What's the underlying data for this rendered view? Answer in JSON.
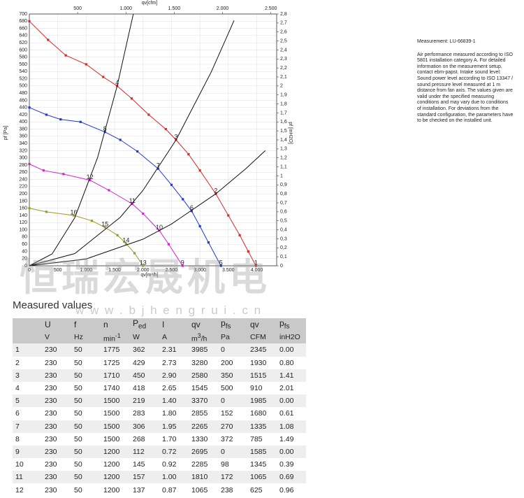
{
  "chart_data": {
    "type": "line",
    "x_label": "qv[m³/h]",
    "x2_label": "qv[cfm]",
    "y_label": "pf [Pa]",
    "y2_label": "pf [inH2O]",
    "xlim": [
      0,
      4350
    ],
    "x2lim": [
      0,
      2560
    ],
    "ylim": [
      0,
      700
    ],
    "y2lim": [
      0,
      2.8
    ],
    "grid": true,
    "xticks": [
      0,
      500,
      {
        "value": 1000,
        "label": "1.000"
      },
      {
        "value": 1500,
        "label": "1.500"
      },
      {
        "value": 2000,
        "label": "2.000"
      },
      {
        "value": 2500,
        "label": "2.500"
      },
      {
        "value": 3000,
        "label": "3.000"
      },
      {
        "value": 3500,
        "label": "3.500"
      },
      {
        "value": 4000,
        "label": "4.000"
      }
    ],
    "x2ticks": [
      500,
      {
        "value": 1000,
        "label": "1.000"
      },
      {
        "value": 1500,
        "label": "1.500"
      },
      {
        "value": 2000,
        "label": "2.000"
      },
      {
        "value": 2500,
        "label": "2.500"
      }
    ],
    "yticks": [
      0,
      20,
      40,
      60,
      80,
      100,
      120,
      140,
      160,
      180,
      200,
      220,
      240,
      260,
      280,
      300,
      320,
      340,
      360,
      380,
      400,
      420,
      440,
      460,
      480,
      500,
      520,
      540,
      560,
      580,
      600,
      620,
      640,
      660,
      680,
      700
    ],
    "y2ticks": [
      0,
      {
        "value": 0.1,
        "label": "0,1"
      },
      {
        "value": 0.2,
        "label": "0,2"
      },
      {
        "value": 0.3,
        "label": "0,3"
      },
      {
        "value": 0.4,
        "label": "0,4"
      },
      {
        "value": 0.5,
        "label": "0,5"
      },
      {
        "value": 0.6,
        "label": "0,6"
      },
      {
        "value": 0.7,
        "label": "0,7"
      },
      {
        "value": 0.8,
        "label": "0,8"
      },
      {
        "value": 0.9,
        "label": "0,9"
      },
      1,
      {
        "value": 1.1,
        "label": "1,1"
      },
      {
        "value": 1.2,
        "label": "1,2"
      },
      {
        "value": 1.3,
        "label": "1,3"
      },
      {
        "value": 1.4,
        "label": "1,4"
      },
      {
        "value": 1.5,
        "label": "1,5"
      },
      {
        "value": 1.6,
        "label": "1,6"
      },
      {
        "value": 1.7,
        "label": "1,7"
      },
      {
        "value": 1.8,
        "label": "1,8"
      },
      {
        "value": 1.9,
        "label": "1,9"
      },
      2,
      {
        "value": 2.1,
        "label": "2,1"
      },
      {
        "value": 2.2,
        "label": "2,2"
      },
      {
        "value": 2.3,
        "label": "2,3"
      },
      {
        "value": 2.4,
        "label": "2,4"
      },
      {
        "value": 2.5,
        "label": "2,5"
      },
      {
        "value": 2.6,
        "label": "2,6"
      },
      {
        "value": 2.7,
        "label": "2,7"
      },
      {
        "value": 2.8,
        "label": "2,8"
      }
    ],
    "series": [
      {
        "color": "#d42a2a",
        "marker": true,
        "x": [
          0,
          330,
          640,
          1000,
          1300,
          1545,
          1800,
          2100,
          2400,
          2580,
          2800,
          3000,
          3280,
          3500,
          3700,
          3850,
          3985
        ],
        "values": [
          680,
          628,
          585,
          560,
          525,
          500,
          465,
          420,
          380,
          350,
          310,
          265,
          200,
          140,
          85,
          40,
          0
        ]
      },
      {
        "color": "#2438d0",
        "marker": true,
        "x": [
          0,
          300,
          550,
          900,
          1330,
          1600,
          1900,
          2265,
          2500,
          2700,
          2855,
          3000,
          3150,
          3370
        ],
        "values": [
          440,
          420,
          407,
          400,
          372,
          350,
          318,
          270,
          225,
          185,
          152,
          110,
          65,
          0
        ]
      },
      {
        "color": "#d024d0",
        "marker": true,
        "x": [
          0,
          250,
          600,
          1065,
          1400,
          1810,
          2000,
          2285,
          2450,
          2695
        ],
        "values": [
          283,
          265,
          255,
          238,
          210,
          172,
          145,
          98,
          60,
          0
        ]
      },
      {
        "color": "#9c9a22",
        "marker": true,
        "x": [
          0,
          300,
          780,
          1100,
          1330,
          1550,
          1700,
          1850,
          2000
        ],
        "values": [
          160,
          150,
          140,
          125,
          107,
          85,
          62,
          35,
          0
        ]
      },
      {
        "color": "#111111",
        "marker": false,
        "x": [
          0,
          400,
          800,
          1200,
          1545,
          1829
        ],
        "values": [
          0,
          33,
          134,
          301,
          500,
          700
        ]
      },
      {
        "color": "#111111",
        "marker": false,
        "x": [
          0,
          800,
          1600,
          2000,
          2580,
          3200,
          3600
        ],
        "values": [
          0,
          34,
          135,
          210,
          350,
          539,
          682
        ]
      },
      {
        "color": "#111111",
        "marker": false,
        "x": [
          0,
          1000,
          2000,
          2500,
          3280,
          3800,
          4150
        ],
        "values": [
          0,
          19,
          74,
          116,
          200,
          269,
          320
        ]
      }
    ],
    "points": [
      {
        "label": "1",
        "x": 3985,
        "y": 0
      },
      {
        "label": "2",
        "x": 3280,
        "y": 200
      },
      {
        "label": "3",
        "x": 2580,
        "y": 350
      },
      {
        "label": "4",
        "x": 1545,
        "y": 500
      },
      {
        "label": "5",
        "x": 3370,
        "y": 0
      },
      {
        "label": "6",
        "x": 2855,
        "y": 152
      },
      {
        "label": "7",
        "x": 2265,
        "y": 270
      },
      {
        "label": "8",
        "x": 1330,
        "y": 372
      },
      {
        "label": "9",
        "x": 2695,
        "y": 0
      },
      {
        "label": "10",
        "x": 2285,
        "y": 98
      },
      {
        "label": "11",
        "x": 1810,
        "y": 172
      },
      {
        "label": "12",
        "x": 1065,
        "y": 238
      },
      {
        "label": "13",
        "x": 2000,
        "y": 0
      },
      {
        "label": "14",
        "x": 1700,
        "y": 62
      },
      {
        "label": "15",
        "x": 1330,
        "y": 107
      },
      {
        "label": "16",
        "x": 780,
        "y": 140
      }
    ]
  },
  "watermark": {
    "name": "恒瑞宏晟机电",
    "url": "w w w . b j h e n g r u i . c n"
  },
  "notes": {
    "measurement": "Measurement: LU-66839-1",
    "text": "Air performance measured according to ISO 5801 installation category A. For detailed information on the measurement setup, contact ebm-papst. Intake sound level: Sound power level according to ISO 13347 / sound pressure level measured at 1 m distance from fan axis. The values given are valid under the specified measuring conditions and may vary due to conditions of installation. For deviations from the standard configuration, the parameters have to be checked on the installed unit."
  },
  "table": {
    "title": "Measured values",
    "columns": [
      {
        "symbol": "U",
        "unit": "V"
      },
      {
        "symbol": "f",
        "unit": "Hz"
      },
      {
        "symbol": "n",
        "unit": "min",
        "unit_sup": "-1"
      },
      {
        "symbol": "P",
        "symbol_sub": "ed",
        "unit": "W"
      },
      {
        "symbol": "I",
        "unit": "A"
      },
      {
        "symbol": "qv",
        "unit": "m",
        "unit_sup": "3",
        "unit_rest": "/h"
      },
      {
        "symbol": "p",
        "symbol_sub": "fs",
        "unit": "Pa"
      },
      {
        "symbol": "qv",
        "unit": "CFM"
      },
      {
        "symbol": "p",
        "symbol_sub": "fs",
        "unit": "inH2O"
      }
    ],
    "rows": [
      [
        "1",
        "230",
        "50",
        "1775",
        "362",
        "2.31",
        "3985",
        "0",
        "2345",
        "0.00"
      ],
      [
        "2",
        "230",
        "50",
        "1725",
        "429",
        "2.73",
        "3280",
        "200",
        "1930",
        "0.80"
      ],
      [
        "3",
        "230",
        "50",
        "1710",
        "450",
        "2.90",
        "2580",
        "350",
        "1515",
        "1.41"
      ],
      [
        "4",
        "230",
        "50",
        "1740",
        "418",
        "2.65",
        "1545",
        "500",
        "910",
        "2.01"
      ],
      [
        "5",
        "230",
        "50",
        "1500",
        "219",
        "1.40",
        "3370",
        "0",
        "1985",
        "0.00"
      ],
      [
        "6",
        "230",
        "50",
        "1500",
        "283",
        "1.80",
        "2855",
        "152",
        "1680",
        "0.61"
      ],
      [
        "7",
        "230",
        "50",
        "1500",
        "306",
        "1.95",
        "2265",
        "270",
        "1335",
        "1.08"
      ],
      [
        "8",
        "230",
        "50",
        "1500",
        "268",
        "1.70",
        "1330",
        "372",
        "785",
        "1.49"
      ],
      [
        "9",
        "230",
        "50",
        "1200",
        "112",
        "0.72",
        "2695",
        "0",
        "1585",
        "0.00"
      ],
      [
        "10",
        "230",
        "50",
        "1200",
        "145",
        "0.92",
        "2285",
        "98",
        "1345",
        "0.39"
      ],
      [
        "11",
        "230",
        "50",
        "1200",
        "157",
        "1.00",
        "1810",
        "172",
        "1065",
        "0.69"
      ],
      [
        "12",
        "230",
        "50",
        "1200",
        "137",
        "0.87",
        "1065",
        "238",
        "625",
        "0.96"
      ]
    ]
  }
}
